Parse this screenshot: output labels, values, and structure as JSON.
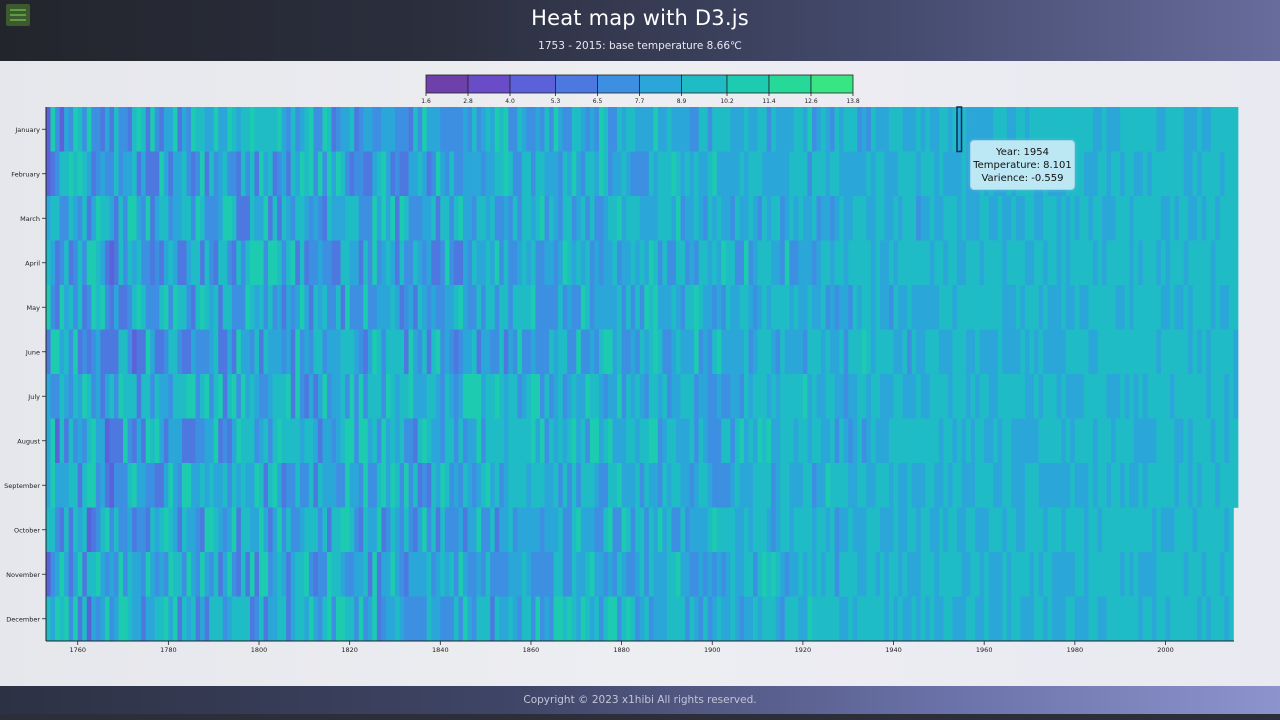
{
  "header": {
    "title": "Heat map with D3.js",
    "subtitle": "1753 - 2015: base temperature 8.66℃"
  },
  "tooltip": {
    "year_line": "Year: 1954",
    "temperature_line": "Temperature: 8.101",
    "variance_line": "Varience: -0.559"
  },
  "footer": {
    "copyright": "Copyright © 2023 x1hibi All rights reserved."
  },
  "chart_data": {
    "type": "heatmap",
    "x_label": "",
    "y_label": "",
    "year_range": [
      1753,
      2015
    ],
    "base_temperature": 8.66,
    "months": [
      "January",
      "February",
      "March",
      "April",
      "May",
      "June",
      "July",
      "August",
      "September",
      "October",
      "November",
      "December"
    ],
    "x_ticks": [
      1760,
      1780,
      1800,
      1820,
      1840,
      1860,
      1880,
      1900,
      1920,
      1940,
      1960,
      1980,
      2000
    ],
    "legend": {
      "thresholds": [
        1.6,
        2.8,
        4.0,
        5.3,
        6.5,
        7.7,
        8.9,
        10.2,
        11.4,
        12.6,
        13.8
      ],
      "colors": [
        "#6e40aa",
        "#6a4cc8",
        "#5b61d8",
        "#4c78df",
        "#3d8fe2",
        "#2ba6d8",
        "#1fbcc6",
        "#1dcbb0",
        "#27d998",
        "#38e484"
      ]
    },
    "highlighted_cell": {
      "year": 1954,
      "month": "January",
      "temperature": 8.101,
      "variance": -0.559
    }
  }
}
